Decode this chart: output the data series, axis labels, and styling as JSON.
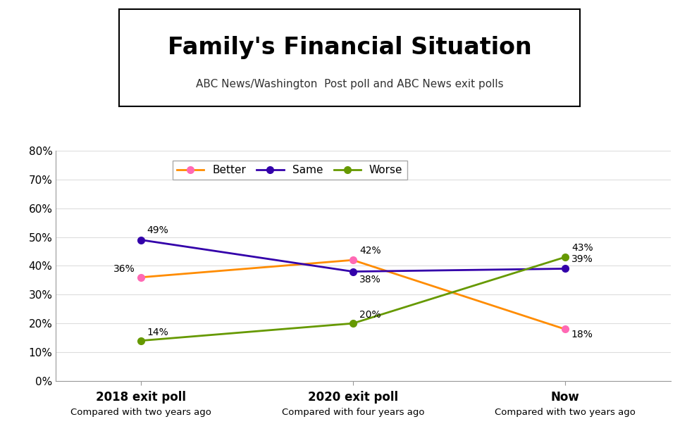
{
  "title": "Family's Financial Situation",
  "subtitle": "ABC News/Washington  Post poll and ABC News exit polls",
  "categories": [
    "2018 exit poll",
    "2020 exit poll",
    "Now"
  ],
  "subcategories": [
    "Compared with two years ago",
    "Compared with four years ago",
    "Compared with two years ago"
  ],
  "series": [
    {
      "name": "Better",
      "values": [
        36,
        42,
        18
      ],
      "color": "#FF8C00",
      "marker_color": "#FF69B4"
    },
    {
      "name": "Same",
      "values": [
        49,
        38,
        39
      ],
      "color": "#3300AA",
      "marker_color": "#3300AA"
    },
    {
      "name": "Worse",
      "values": [
        14,
        20,
        43
      ],
      "color": "#669900",
      "marker_color": "#669900"
    }
  ],
  "ylim": [
    0,
    80
  ],
  "yticks": [
    0,
    10,
    20,
    30,
    40,
    50,
    60,
    70,
    80
  ],
  "ytick_labels": [
    "0%",
    "10%",
    "20%",
    "30%",
    "40%",
    "50%",
    "60%",
    "70%",
    "80%"
  ],
  "background_color": "#FFFFFF",
  "title_fontsize": 24,
  "subtitle_fontsize": 11,
  "annotation_fontsize": 10,
  "legend_fontsize": 11,
  "title_box_color": "#FFFFFF",
  "title_box_edge": "#000000",
  "annotations": [
    {
      "s_idx": 0,
      "p_idx": 0,
      "xoff": -0.13,
      "yoff": 1.2
    },
    {
      "s_idx": 0,
      "p_idx": 1,
      "xoff": 0.03,
      "yoff": 1.5
    },
    {
      "s_idx": 0,
      "p_idx": 2,
      "xoff": 0.03,
      "yoff": -3.5
    },
    {
      "s_idx": 1,
      "p_idx": 0,
      "xoff": 0.03,
      "yoff": 1.5
    },
    {
      "s_idx": 1,
      "p_idx": 1,
      "xoff": 0.03,
      "yoff": -4.5
    },
    {
      "s_idx": 1,
      "p_idx": 2,
      "xoff": 0.03,
      "yoff": 1.5
    },
    {
      "s_idx": 2,
      "p_idx": 0,
      "xoff": 0.03,
      "yoff": 1.2
    },
    {
      "s_idx": 2,
      "p_idx": 1,
      "xoff": 0.03,
      "yoff": 1.2
    },
    {
      "s_idx": 2,
      "p_idx": 2,
      "xoff": 0.03,
      "yoff": 1.5
    }
  ]
}
